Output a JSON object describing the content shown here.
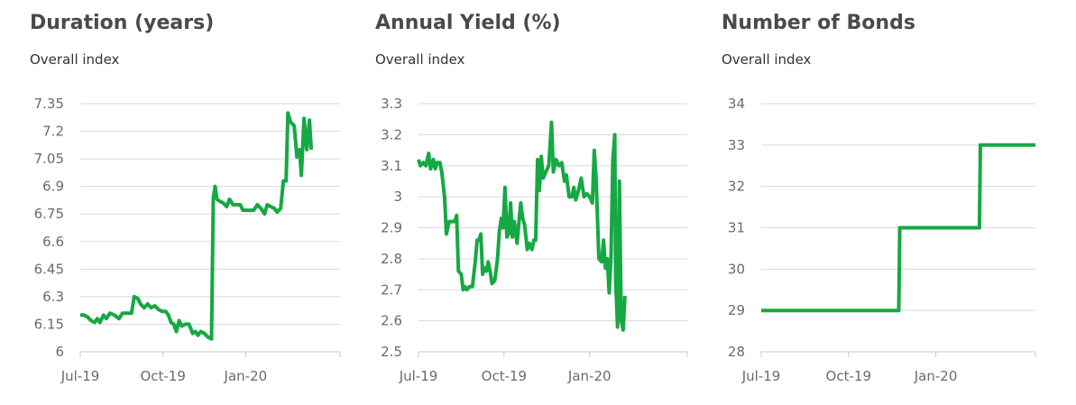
{
  "chart_data": [
    {
      "type": "line",
      "title": "Duration (years)",
      "subtitle": "Overall index",
      "color": "#16a843",
      "ylim": [
        6,
        7.35
      ],
      "yticks": [
        "6",
        "6.15",
        "6.3",
        "6.45",
        "6.6",
        "6.75",
        "6.9",
        "7.05",
        "7.2",
        "7.35"
      ],
      "xlim": [
        "2019-07-01",
        "2020-04-15"
      ],
      "xticks": [
        {
          "label": "Jul-19",
          "date": "2019-07-01"
        },
        {
          "label": "Oct-19",
          "date": "2019-10-01"
        },
        {
          "label": "Jan-20",
          "date": "2020-01-01"
        }
      ],
      "series": [
        {
          "points": [
            [
              "2019-07-01",
              6.2
            ],
            [
              "2019-07-05",
              6.2
            ],
            [
              "2019-07-09",
              6.19
            ],
            [
              "2019-07-13",
              6.17
            ],
            [
              "2019-07-17",
              6.16
            ],
            [
              "2019-07-20",
              6.18
            ],
            [
              "2019-07-23",
              6.16
            ],
            [
              "2019-07-27",
              6.2
            ],
            [
              "2019-07-30",
              6.18
            ],
            [
              "2019-08-03",
              6.21
            ],
            [
              "2019-08-08",
              6.2
            ],
            [
              "2019-08-13",
              6.18
            ],
            [
              "2019-08-17",
              6.21
            ],
            [
              "2019-08-22",
              6.21
            ],
            [
              "2019-08-27",
              6.21
            ],
            [
              "2019-08-30",
              6.3
            ],
            [
              "2019-09-03",
              6.29
            ],
            [
              "2019-09-06",
              6.26
            ],
            [
              "2019-09-10",
              6.24
            ],
            [
              "2019-09-14",
              6.26
            ],
            [
              "2019-09-18",
              6.24
            ],
            [
              "2019-09-22",
              6.25
            ],
            [
              "2019-09-26",
              6.23
            ],
            [
              "2019-09-30",
              6.22
            ],
            [
              "2019-10-04",
              6.22
            ],
            [
              "2019-10-07",
              6.2
            ],
            [
              "2019-10-10",
              6.16
            ],
            [
              "2019-10-13",
              6.15
            ],
            [
              "2019-10-16",
              6.11
            ],
            [
              "2019-10-19",
              6.17
            ],
            [
              "2019-10-22",
              6.14
            ],
            [
              "2019-10-26",
              6.15
            ],
            [
              "2019-10-30",
              6.15
            ],
            [
              "2019-11-03",
              6.1
            ],
            [
              "2019-11-06",
              6.11
            ],
            [
              "2019-11-09",
              6.09
            ],
            [
              "2019-11-12",
              6.11
            ],
            [
              "2019-11-16",
              6.1
            ],
            [
              "2019-11-20",
              6.08
            ],
            [
              "2019-11-24",
              6.07
            ],
            [
              "2019-11-26",
              6.84
            ],
            [
              "2019-11-28",
              6.9
            ],
            [
              "2019-11-30",
              6.83
            ],
            [
              "2019-12-03",
              6.82
            ],
            [
              "2019-12-07",
              6.81
            ],
            [
              "2019-12-11",
              6.79
            ],
            [
              "2019-12-14",
              6.83
            ],
            [
              "2019-12-18",
              6.8
            ],
            [
              "2019-12-22",
              6.8
            ],
            [
              "2019-12-26",
              6.8
            ],
            [
              "2019-12-29",
              6.77
            ],
            [
              "2020-01-02",
              6.77
            ],
            [
              "2020-01-06",
              6.77
            ],
            [
              "2020-01-10",
              6.77
            ],
            [
              "2020-01-14",
              6.8
            ],
            [
              "2020-01-18",
              6.78
            ],
            [
              "2020-01-22",
              6.75
            ],
            [
              "2020-01-25",
              6.8
            ],
            [
              "2020-01-29",
              6.79
            ],
            [
              "2020-02-02",
              6.78
            ],
            [
              "2020-02-05",
              6.76
            ],
            [
              "2020-02-09",
              6.78
            ],
            [
              "2020-02-12",
              6.93
            ],
            [
              "2020-02-15",
              6.93
            ],
            [
              "2020-02-17",
              7.3
            ],
            [
              "2020-02-20",
              7.25
            ],
            [
              "2020-02-24",
              7.23
            ],
            [
              "2020-02-27",
              7.06
            ],
            [
              "2020-03-01",
              7.1
            ],
            [
              "2020-03-03",
              6.96
            ],
            [
              "2020-03-06",
              7.27
            ],
            [
              "2020-03-09",
              7.1
            ],
            [
              "2020-03-12",
              7.26
            ],
            [
              "2020-03-14",
              7.1
            ]
          ]
        }
      ]
    },
    {
      "type": "line",
      "title": "Annual Yield (%)",
      "subtitle": "Overall index",
      "color": "#16a843",
      "ylim": [
        2.5,
        3.3
      ],
      "yticks": [
        "2.5",
        "2.6",
        "2.7",
        "2.8",
        "2.9",
        "3",
        "3.1",
        "3.2",
        "3.3"
      ],
      "xlim": [
        "2019-07-01",
        "2020-04-15"
      ],
      "xticks": [
        {
          "label": "Jul-19",
          "date": "2019-07-01"
        },
        {
          "label": "Oct-19",
          "date": "2019-10-01"
        },
        {
          "label": "Jan-20",
          "date": "2020-01-01"
        }
      ],
      "series": [
        {
          "points": [
            [
              "2019-07-01",
              3.12
            ],
            [
              "2019-07-03",
              3.1
            ],
            [
              "2019-07-06",
              3.11
            ],
            [
              "2019-07-09",
              3.1
            ],
            [
              "2019-07-12",
              3.14
            ],
            [
              "2019-07-14",
              3.09
            ],
            [
              "2019-07-17",
              3.12
            ],
            [
              "2019-07-19",
              3.09
            ],
            [
              "2019-07-21",
              3.11
            ],
            [
              "2019-07-24",
              3.11
            ],
            [
              "2019-07-26",
              3.08
            ],
            [
              "2019-07-29",
              3.0
            ],
            [
              "2019-07-31",
              2.88
            ],
            [
              "2019-08-03",
              2.92
            ],
            [
              "2019-08-06",
              2.92
            ],
            [
              "2019-08-09",
              2.92
            ],
            [
              "2019-08-11",
              2.94
            ],
            [
              "2019-08-13",
              2.76
            ],
            [
              "2019-08-16",
              2.75
            ],
            [
              "2019-08-18",
              2.7
            ],
            [
              "2019-08-20",
              2.71
            ],
            [
              "2019-08-22",
              2.7
            ],
            [
              "2019-08-25",
              2.71
            ],
            [
              "2019-08-28",
              2.71
            ],
            [
              "2019-08-31",
              2.79
            ],
            [
              "2019-09-02",
              2.86
            ],
            [
              "2019-09-04",
              2.86
            ],
            [
              "2019-09-06",
              2.88
            ],
            [
              "2019-09-08",
              2.75
            ],
            [
              "2019-09-10",
              2.77
            ],
            [
              "2019-09-12",
              2.76
            ],
            [
              "2019-09-14",
              2.79
            ],
            [
              "2019-09-16",
              2.76
            ],
            [
              "2019-09-18",
              2.72
            ],
            [
              "2019-09-21",
              2.73
            ],
            [
              "2019-09-24",
              2.8
            ],
            [
              "2019-09-26",
              2.89
            ],
            [
              "2019-09-28",
              2.93
            ],
            [
              "2019-09-30",
              2.9
            ],
            [
              "2019-10-02",
              3.03
            ],
            [
              "2019-10-04",
              2.87
            ],
            [
              "2019-10-06",
              2.88
            ],
            [
              "2019-10-08",
              2.98
            ],
            [
              "2019-10-10",
              2.87
            ],
            [
              "2019-10-12",
              2.92
            ],
            [
              "2019-10-15",
              2.85
            ],
            [
              "2019-10-17",
              2.92
            ],
            [
              "2019-10-19",
              2.98
            ],
            [
              "2019-10-21",
              2.93
            ],
            [
              "2019-10-23",
              2.91
            ],
            [
              "2019-10-26",
              2.83
            ],
            [
              "2019-10-28",
              2.85
            ],
            [
              "2019-10-31",
              2.83
            ],
            [
              "2019-11-02",
              2.86
            ],
            [
              "2019-11-04",
              2.86
            ],
            [
              "2019-11-06",
              3.12
            ],
            [
              "2019-11-08",
              3.02
            ],
            [
              "2019-11-10",
              3.13
            ],
            [
              "2019-11-12",
              3.06
            ],
            [
              "2019-11-15",
              3.08
            ],
            [
              "2019-11-18",
              3.1
            ],
            [
              "2019-11-21",
              3.24
            ],
            [
              "2019-11-23",
              3.08
            ],
            [
              "2019-11-26",
              3.12
            ],
            [
              "2019-11-29",
              3.1
            ],
            [
              "2019-12-02",
              3.11
            ],
            [
              "2019-12-05",
              3.05
            ],
            [
              "2019-12-07",
              3.07
            ],
            [
              "2019-12-10",
              3.0
            ],
            [
              "2019-12-13",
              3.0
            ],
            [
              "2019-12-15",
              3.03
            ],
            [
              "2019-12-17",
              2.99
            ],
            [
              "2019-12-20",
              3.02
            ],
            [
              "2019-12-23",
              3.06
            ],
            [
              "2019-12-26",
              3.0
            ],
            [
              "2019-12-29",
              3.01
            ],
            [
              "2020-01-01",
              3.0
            ],
            [
              "2020-01-04",
              2.98
            ],
            [
              "2020-01-06",
              3.15
            ],
            [
              "2020-01-08",
              3.06
            ],
            [
              "2020-01-11",
              2.8
            ],
            [
              "2020-01-14",
              2.79
            ],
            [
              "2020-01-16",
              2.86
            ],
            [
              "2020-01-18",
              2.77
            ],
            [
              "2020-01-20",
              2.8
            ],
            [
              "2020-01-22",
              2.69
            ],
            [
              "2020-01-24",
              2.8
            ],
            [
              "2020-01-26",
              3.12
            ],
            [
              "2020-01-28",
              3.2
            ],
            [
              "2020-01-29",
              2.73
            ],
            [
              "2020-01-31",
              2.58
            ],
            [
              "2020-02-02",
              3.05
            ],
            [
              "2020-02-04",
              2.6
            ],
            [
              "2020-02-06",
              2.57
            ],
            [
              "2020-02-08",
              2.68
            ]
          ]
        }
      ]
    },
    {
      "type": "line",
      "title": "Number of Bonds",
      "subtitle": "Overall index",
      "color": "#16a843",
      "ylim": [
        28,
        34
      ],
      "yticks": [
        "28",
        "29",
        "30",
        "31",
        "32",
        "33",
        "34"
      ],
      "xlim": [
        "2019-07-01",
        "2020-04-15"
      ],
      "xticks": [
        {
          "label": "Jul-19",
          "date": "2019-07-01"
        },
        {
          "label": "Oct-19",
          "date": "2019-10-01"
        },
        {
          "label": "Jan-20",
          "date": "2020-01-01"
        }
      ],
      "series": [
        {
          "points": [
            [
              "2019-07-01",
              29
            ],
            [
              "2019-11-23",
              29
            ],
            [
              "2019-11-24",
              31
            ],
            [
              "2020-02-16",
              31
            ],
            [
              "2020-02-17",
              33
            ],
            [
              "2020-04-15",
              33
            ]
          ]
        }
      ]
    }
  ]
}
